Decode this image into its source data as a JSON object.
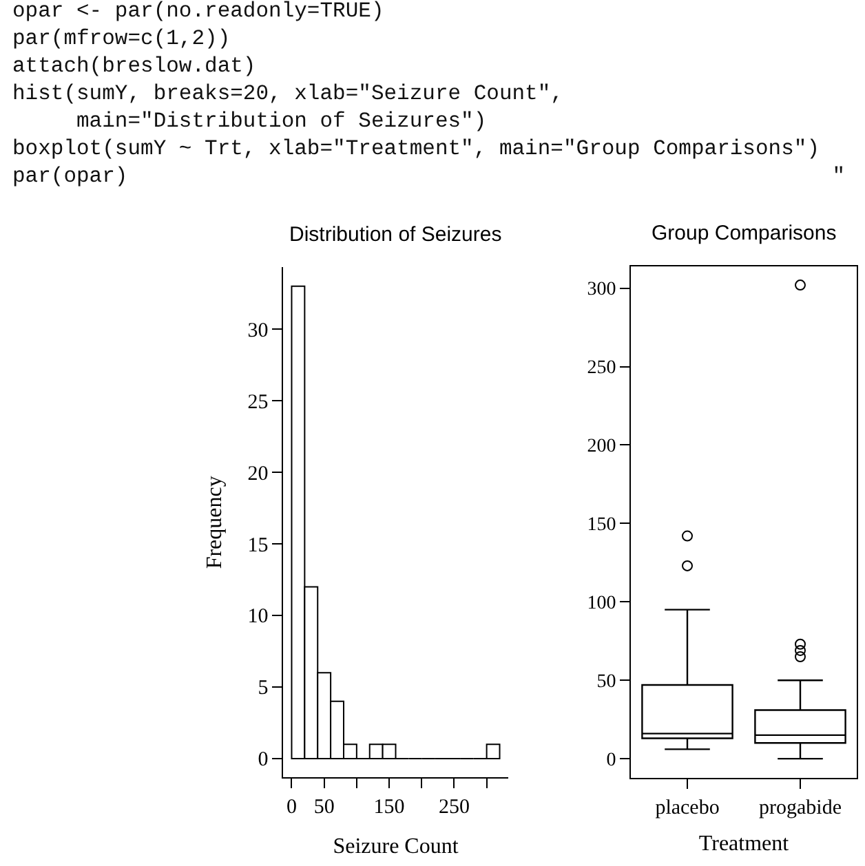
{
  "chart_data": [
    {
      "type": "other",
      "annotations": [
        "opar <- par(no.readonly=TRUE)",
        "par(mfrow=c(1,2))",
        "attach(breslow.dat)",
        "hist(sumY, breaks=20, xlab=\"Seizure Count\",",
        "     main=\"Distribution of Seizures\")",
        "boxplot(sumY ~ Trt, xlab=\"Treatment\", main=\"Group Comparisons\")",
        "par(opar)                                                       \""
      ]
    },
    {
      "type": "histogram",
      "title": "Distribution of Seizures",
      "xlabel": "Seizure Count",
      "ylabel": "Frequency",
      "bins": [
        0,
        20,
        40,
        60,
        80,
        100,
        120,
        140,
        160,
        180,
        200,
        220,
        240,
        260,
        280,
        300,
        320
      ],
      "values": [
        33,
        12,
        6,
        4,
        1,
        0,
        1,
        1,
        0,
        0,
        0,
        0,
        0,
        0,
        0,
        1
      ],
      "xlim": [
        -12.8,
        332.8
      ],
      "xticks": [
        0,
        50,
        {
          "value": 100,
          "label": null
        },
        150,
        {
          "value": 200,
          "label": null
        },
        250,
        {
          "value": 300,
          "label": null
        }
      ],
      "ylim": [
        -1.32,
        34.32
      ],
      "yticks": [
        0,
        5,
        10,
        15,
        20,
        25,
        30
      ]
    },
    {
      "type": "box",
      "title": "Group Comparisons",
      "xlabel": "Treatment",
      "color": "#ffffff",
      "categories": [
        "placebo",
        "progabide"
      ],
      "boxes": [
        {
          "low": 6,
          "q1": 13,
          "median": 16,
          "q3": 47,
          "high": 95,
          "outliers": [
            123,
            142
          ]
        },
        {
          "low": 0,
          "q1": 10,
          "median": 15,
          "q3": 31,
          "high": 50,
          "outliers": [
            65,
            69,
            73,
            302
          ]
        }
      ],
      "ylim": [
        -12.08,
        314.08
      ],
      "yticks": [
        0,
        50,
        100,
        150,
        200,
        250,
        300
      ]
    }
  ]
}
